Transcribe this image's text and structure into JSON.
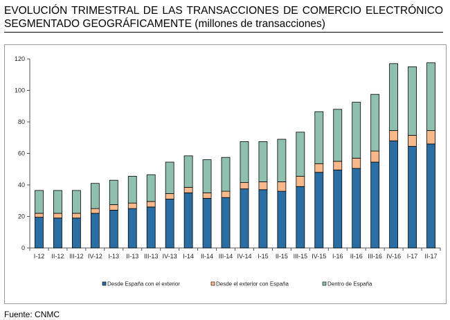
{
  "title": {
    "line1": "EVOLUCIÓN TRIMESTRAL DE LAS TRANSACCIONES DE COMERCIO ELECTRÓNICO",
    "line2": "SEGMENTADO GEOGRÁFICAMENTE (millones de transacciones)"
  },
  "source": "Fuente: CNMC",
  "chart_data": {
    "type": "bar",
    "stacked": true,
    "title": "EVOLUCIÓN TRIMESTRAL DE LAS TRANSACCIONES DE COMERCIO ELECTRÓNICO SEGMENTADO GEOGRÁFICAMENTE (millones de transacciones)",
    "xlabel": "",
    "ylabel": "",
    "ylim": [
      0,
      120
    ],
    "yticks": [
      0,
      20,
      40,
      60,
      80,
      100,
      120
    ],
    "grid": false,
    "legend_position": "bottom",
    "categories": [
      "I-12",
      "II-12",
      "III-12",
      "IV-12",
      "I-13",
      "II-13",
      "III-13",
      "IV-13",
      "I-14",
      "II-14",
      "III-14",
      "IV-14",
      "I-15",
      "II-15",
      "III-15",
      "IV-15",
      "I-16",
      "II-16",
      "III-16",
      "IV-16",
      "I-17",
      "II-17"
    ],
    "series": [
      {
        "name": "Desde España con el exterior",
        "color": "#2b6ea3",
        "values": [
          19.5,
          19.0,
          19.0,
          22.0,
          24.0,
          25.0,
          26.0,
          31.0,
          35.0,
          31.5,
          32.0,
          37.5,
          37.0,
          36.0,
          39.0,
          48.0,
          49.5,
          50.5,
          54.5,
          68.0,
          64.5,
          66.0
        ]
      },
      {
        "name": "Desde el exterior con España",
        "color": "#f7b98c",
        "values": [
          2.5,
          3.0,
          3.0,
          3.0,
          3.5,
          3.5,
          3.5,
          3.5,
          3.5,
          3.5,
          4.0,
          4.0,
          5.0,
          6.0,
          6.5,
          5.5,
          5.5,
          6.5,
          7.0,
          6.5,
          7.0,
          8.5
        ]
      },
      {
        "name": "Dentro de España",
        "color": "#8fbfae",
        "values": [
          14.5,
          14.5,
          14.5,
          16.0,
          15.5,
          17.0,
          17.0,
          20.0,
          20.0,
          21.0,
          21.5,
          26.0,
          25.5,
          27.0,
          28.0,
          33.0,
          33.0,
          35.5,
          36.0,
          42.5,
          43.5,
          43.0
        ]
      }
    ]
  }
}
